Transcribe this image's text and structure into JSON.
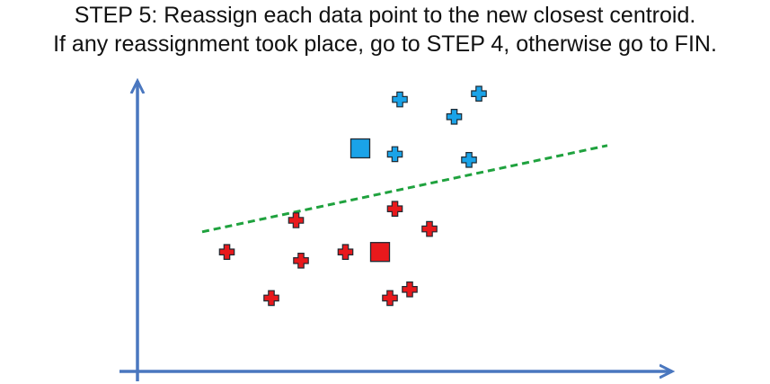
{
  "caption": {
    "step_label": "STEP 5",
    "line1_rest": ": Reassign each data point to the new closest centroid.",
    "line2": "If any reassignment took place, go to STEP 4, otherwise go to FIN."
  },
  "colors": {
    "axis": "#4a77bf",
    "cluster_blue": "#1aa3e8",
    "cluster_red": "#e8191c",
    "outline": "#1f2a33",
    "boundary": "#1fa23e"
  },
  "chart_data": {
    "type": "scatter",
    "xlim": [
      0,
      10
    ],
    "ylim": [
      0,
      10
    ],
    "series": [
      {
        "cluster": "blue",
        "points": [
          [
            5.0,
            9.2
          ],
          [
            6.1,
            8.6
          ],
          [
            6.6,
            9.4
          ],
          [
            4.9,
            7.3
          ],
          [
            6.4,
            7.1
          ]
        ],
        "centroid": [
          4.2,
          7.5
        ]
      },
      {
        "cluster": "red",
        "points": [
          [
            1.5,
            3.9
          ],
          [
            2.9,
            5.0
          ],
          [
            3.0,
            3.6
          ],
          [
            3.9,
            3.9
          ],
          [
            4.9,
            5.4
          ],
          [
            5.6,
            4.7
          ],
          [
            2.4,
            2.3
          ],
          [
            4.8,
            2.3
          ],
          [
            5.2,
            2.6
          ]
        ],
        "centroid": [
          4.6,
          3.9
        ]
      }
    ],
    "boundary_line": {
      "style": "dashed",
      "from": [
        1.0,
        4.6
      ],
      "to": [
        9.2,
        7.6
      ]
    }
  }
}
